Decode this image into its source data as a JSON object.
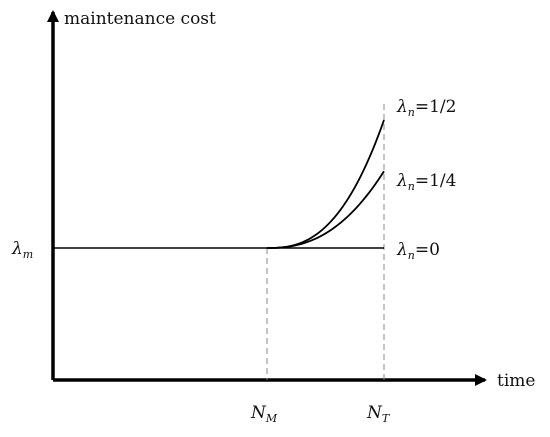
{
  "chart_data": {
    "type": "line",
    "ylabel": "maintenance cost",
    "xlabel": "time",
    "y_baseline_label": {
      "symbol": "λ",
      "sub": "m"
    },
    "x_markers": [
      {
        "symbol": "N",
        "sub": "M"
      },
      {
        "symbol": "N",
        "sub": "T"
      }
    ],
    "series": [
      {
        "label_symbol": "λ",
        "label_sub": "n",
        "label_value": "=1/2",
        "exponent": 2.6,
        "end_rise": 1.0
      },
      {
        "label_symbol": "λ",
        "label_sub": "n",
        "label_value": "=1/4",
        "exponent": 2.4,
        "end_rise": 0.6
      },
      {
        "label_symbol": "λ",
        "label_sub": "n",
        "label_value": "=0",
        "exponent": 1,
        "end_rise": 0
      }
    ]
  }
}
